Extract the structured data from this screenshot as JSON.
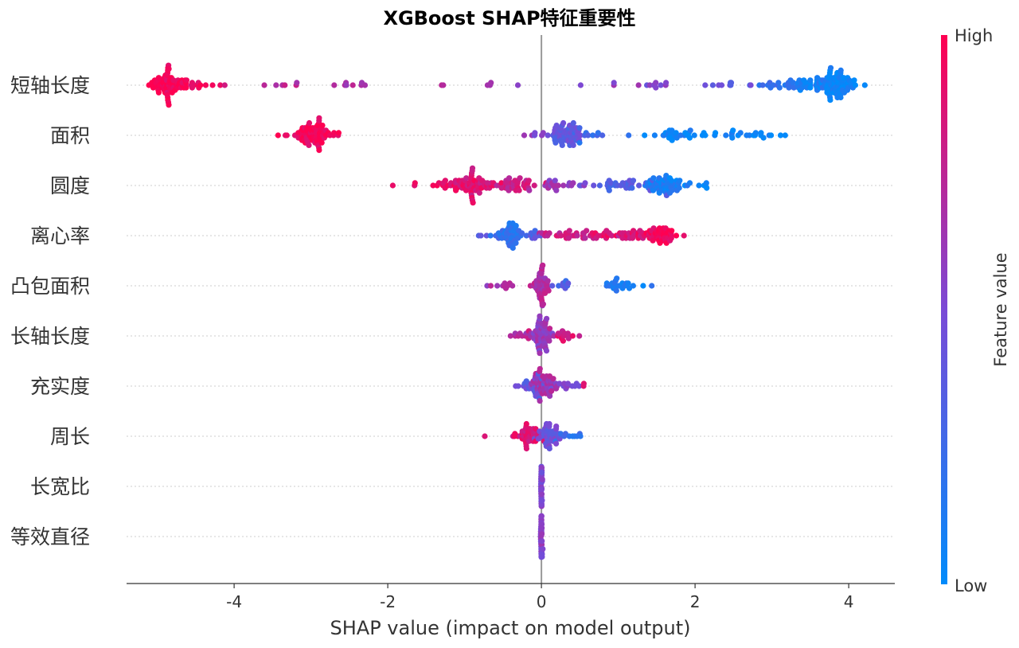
{
  "chart_data": {
    "type": "scatter",
    "subtype": "shap-beeswarm",
    "title": "XGBoost SHAP特征重要性",
    "xlabel": "SHAP value (impact on model output)",
    "xlim": [
      -5.4,
      4.6
    ],
    "xticks": [
      -4,
      -2,
      0,
      2,
      4
    ],
    "xtick_labels": [
      "-4",
      "-2",
      "0",
      "2",
      "4"
    ],
    "grid": false,
    "colorbar": {
      "title": "Feature value",
      "high_label": "High",
      "low_label": "Low",
      "high_color": "#ff0051",
      "mid_color": "#7a4ad6",
      "low_color": "#008bfb"
    },
    "features": [
      {
        "name": "短轴长度",
        "clusters": [
          {
            "center": -4.83,
            "spread": 0.14,
            "count": 70,
            "fv": 0.98
          },
          {
            "center": -4.55,
            "spread": 0.12,
            "count": 10,
            "fv": 0.92
          },
          {
            "center": -4.25,
            "spread": 0.1,
            "count": 3,
            "fv": 0.88
          },
          {
            "center": -3.4,
            "spread": 0.22,
            "count": 6,
            "fv": 0.74
          },
          {
            "center": -2.45,
            "spread": 0.14,
            "count": 8,
            "fv": 0.7
          },
          {
            "center": -1.3,
            "spread": 0.04,
            "count": 2,
            "fv": 0.68
          },
          {
            "center": -0.65,
            "spread": 0.06,
            "count": 3,
            "fv": 0.66
          },
          {
            "center": -0.3,
            "spread": 0.04,
            "count": 1,
            "fv": 0.6
          },
          {
            "center": 0.48,
            "spread": 0.02,
            "count": 1,
            "fv": 0.58
          },
          {
            "center": 1.0,
            "spread": 0.1,
            "count": 3,
            "fv": 0.55
          },
          {
            "center": 1.5,
            "spread": 0.1,
            "count": 8,
            "fv": 0.5
          },
          {
            "center": 2.3,
            "spread": 0.18,
            "count": 9,
            "fv": 0.42
          },
          {
            "center": 3.15,
            "spread": 0.18,
            "count": 22,
            "fv": 0.2
          },
          {
            "center": 3.6,
            "spread": 0.15,
            "count": 30,
            "fv": 0.1
          },
          {
            "center": 3.85,
            "spread": 0.12,
            "count": 70,
            "fv": 0.03
          }
        ]
      },
      {
        "name": "面积",
        "clusters": [
          {
            "center": -3.45,
            "spread": 0.02,
            "count": 1,
            "fv": 0.92
          },
          {
            "center": -3.0,
            "spread": 0.13,
            "count": 75,
            "fv": 0.97
          },
          {
            "center": -0.05,
            "spread": 0.06,
            "count": 6,
            "fv": 0.55
          },
          {
            "center": 0.3,
            "spread": 0.12,
            "count": 60,
            "fv": 0.4
          },
          {
            "center": 0.6,
            "spread": 0.1,
            "count": 10,
            "fv": 0.25
          },
          {
            "center": 1.2,
            "spread": 0.03,
            "count": 1,
            "fv": 0.1
          },
          {
            "center": 1.65,
            "spread": 0.12,
            "count": 22,
            "fv": 0.06
          },
          {
            "center": 2.4,
            "spread": 0.35,
            "count": 22,
            "fv": 0.04
          },
          {
            "center": 3.0,
            "spread": 0.12,
            "count": 5,
            "fv": 0.03
          }
        ]
      },
      {
        "name": "圆度",
        "clusters": [
          {
            "center": -1.95,
            "spread": 0.03,
            "count": 1,
            "fv": 0.98
          },
          {
            "center": -1.65,
            "spread": 0.03,
            "count": 2,
            "fv": 0.96
          },
          {
            "center": -1.2,
            "spread": 0.15,
            "count": 15,
            "fv": 0.92
          },
          {
            "center": -0.9,
            "spread": 0.18,
            "count": 55,
            "fv": 0.88
          },
          {
            "center": -0.4,
            "spread": 0.15,
            "count": 40,
            "fv": 0.8
          },
          {
            "center": 0.2,
            "spread": 0.15,
            "count": 20,
            "fv": 0.6
          },
          {
            "center": 0.5,
            "spread": 0.05,
            "count": 3,
            "fv": 0.5
          },
          {
            "center": 1.1,
            "spread": 0.22,
            "count": 30,
            "fv": 0.35
          },
          {
            "center": 1.6,
            "spread": 0.12,
            "count": 55,
            "fv": 0.1
          },
          {
            "center": 2.0,
            "spread": 0.1,
            "count": 6,
            "fv": 0.05
          }
        ]
      },
      {
        "name": "离心率",
        "clusters": [
          {
            "center": -0.75,
            "spread": 0.05,
            "count": 3,
            "fv": 0.35
          },
          {
            "center": -0.42,
            "spread": 0.1,
            "count": 50,
            "fv": 0.2
          },
          {
            "center": -0.1,
            "spread": 0.06,
            "count": 8,
            "fv": 0.35
          },
          {
            "center": 0.5,
            "spread": 0.25,
            "count": 40,
            "fv": 0.8
          },
          {
            "center": 1.1,
            "spread": 0.2,
            "count": 30,
            "fv": 0.88
          },
          {
            "center": 1.55,
            "spread": 0.12,
            "count": 45,
            "fv": 0.95
          }
        ]
      },
      {
        "name": "凸包面积",
        "clusters": [
          {
            "center": -0.5,
            "spread": 0.12,
            "count": 10,
            "fv": 0.65
          },
          {
            "center": 0.0,
            "spread": 0.05,
            "count": 50,
            "fv": 0.7
          },
          {
            "center": 0.3,
            "spread": 0.08,
            "count": 10,
            "fv": 0.3
          },
          {
            "center": 0.9,
            "spread": 0.08,
            "count": 10,
            "fv": 0.15
          },
          {
            "center": 1.15,
            "spread": 0.12,
            "count": 14,
            "fv": 0.1
          }
        ]
      },
      {
        "name": "长轴长度",
        "clusters": [
          {
            "center": -0.25,
            "spread": 0.08,
            "count": 12,
            "fv": 0.75
          },
          {
            "center": 0.0,
            "spread": 0.07,
            "count": 55,
            "fv": 0.6
          },
          {
            "center": 0.3,
            "spread": 0.1,
            "count": 15,
            "fv": 0.85
          }
        ]
      },
      {
        "name": "充实度",
        "clusters": [
          {
            "center": -0.15,
            "spread": 0.1,
            "count": 25,
            "fv": 0.4
          },
          {
            "center": 0.05,
            "spread": 0.08,
            "count": 45,
            "fv": 0.65
          },
          {
            "center": 0.35,
            "spread": 0.1,
            "count": 12,
            "fv": 0.5
          },
          {
            "center": 0.55,
            "spread": 0.03,
            "count": 2,
            "fv": 0.95
          }
        ]
      },
      {
        "name": "周长",
        "clusters": [
          {
            "center": -0.73,
            "spread": 0.02,
            "count": 1,
            "fv": 0.95
          },
          {
            "center": -0.18,
            "spread": 0.1,
            "count": 40,
            "fv": 0.85
          },
          {
            "center": 0.1,
            "spread": 0.08,
            "count": 40,
            "fv": 0.45
          },
          {
            "center": 0.38,
            "spread": 0.08,
            "count": 10,
            "fv": 0.2
          }
        ]
      },
      {
        "name": "长宽比",
        "clusters": [
          {
            "center": 0.0,
            "spread": 0.005,
            "count": 40,
            "fv": 0.5
          }
        ]
      },
      {
        "name": "等效直径",
        "clusters": [
          {
            "center": 0.0,
            "spread": 0.005,
            "count": 40,
            "fv": 0.55
          }
        ]
      }
    ]
  }
}
